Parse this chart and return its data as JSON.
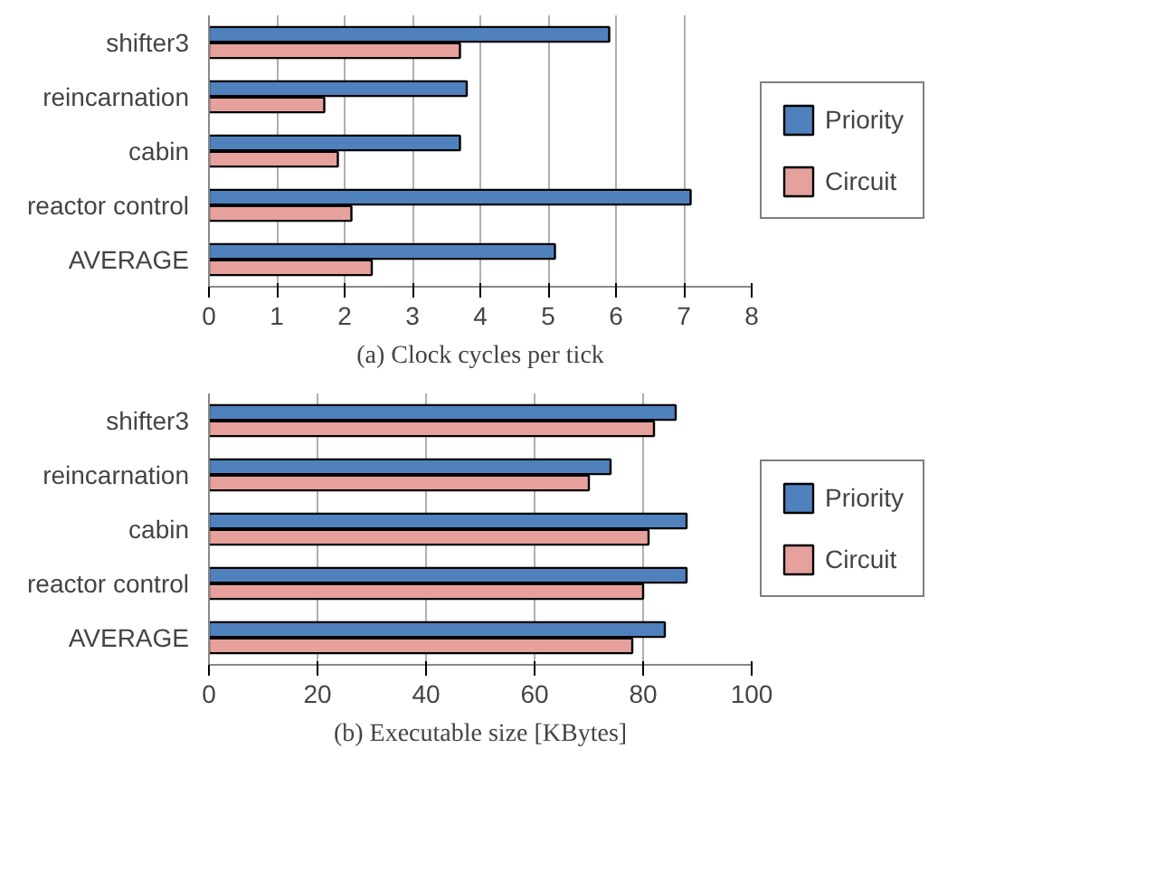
{
  "chart_data": [
    {
      "type": "bar",
      "orientation": "horizontal",
      "title": "(a) Clock cycles per tick",
      "categories": [
        "shifter3",
        "reincarnation",
        "cabin",
        "reactor control",
        "AVERAGE"
      ],
      "series": [
        {
          "name": "Priority",
          "color": "#4f81bd",
          "values": [
            5.9,
            3.8,
            3.7,
            7.1,
            5.1
          ]
        },
        {
          "name": "Circuit",
          "color": "#e6a19d",
          "values": [
            3.7,
            1.7,
            1.9,
            2.1,
            2.4
          ]
        }
      ],
      "xlim": [
        0,
        8
      ],
      "xticks": [
        0,
        1,
        2,
        3,
        4,
        5,
        6,
        7,
        8
      ],
      "grid": "x",
      "legend": "right"
    },
    {
      "type": "bar",
      "orientation": "horizontal",
      "title": "(b) Executable size [KBytes]",
      "categories": [
        "shifter3",
        "reincarnation",
        "cabin",
        "reactor control",
        "AVERAGE"
      ],
      "series": [
        {
          "name": "Priority",
          "color": "#4f81bd",
          "values": [
            86,
            74,
            88,
            88,
            84
          ]
        },
        {
          "name": "Circuit",
          "color": "#e6a19d",
          "values": [
            82,
            70,
            81,
            80,
            78
          ]
        }
      ],
      "xlim": [
        0,
        100
      ],
      "xticks": [
        0,
        20,
        40,
        60,
        80,
        100
      ],
      "grid": "x",
      "legend": "right"
    }
  ]
}
